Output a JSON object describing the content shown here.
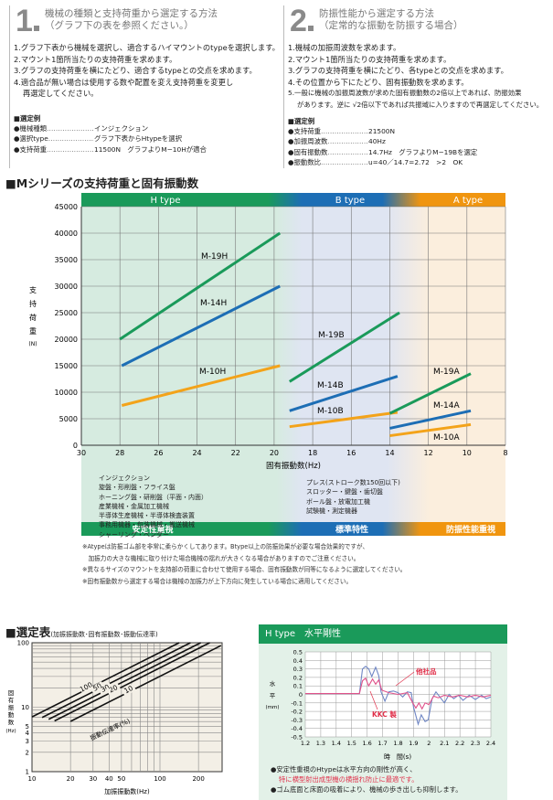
{
  "section1": {
    "number": "1",
    "title_line1": "機械の種類と支持荷重から選定する方法",
    "title_line2": "（グラフ下の表を参照ください。）",
    "steps": [
      "1.グラフ下表から機械を選択し、適合するハイマウントのtypeを選択します。",
      "2.マウント1箇所当たりの支持荷重を求めます。",
      "3.グラフの支持荷重を横にたどり、適合するtypeとの交点を求めます。",
      "4.適合品が無い場合は使用する数や配置を変え支持荷重を変更し",
      "再選定してください。"
    ],
    "example_title": "■選定例",
    "example": [
      {
        "k": "●機械種類",
        "v": "インジェクション"
      },
      {
        "k": "●選択type",
        "v": "グラフ下表からHtypeを選択"
      },
      {
        "k": "●支持荷重",
        "v": "11500N　グラフよりM−10Hが適合"
      }
    ]
  },
  "section2": {
    "number": "2",
    "title_line1": "防振性能から選定する方法",
    "title_line2": "（定常的な振動を防振する場合）",
    "steps": [
      "1.機械の加振周波数を求めます。",
      "2.マウント1箇所当たりの支持荷重を求めます。",
      "3.グラフの支持荷重を横にたどり、各typeとの交点を求めます。",
      "4.その位置から下にたどり、固有振動数を求めます。",
      "5.一般に機械の加振周波数が求めた固有振動数の2倍以上であれば、防振効果",
      "があります。逆に √2倍以下であれば共振域に入りますので再選定してください。"
    ],
    "example_title": "■選定例",
    "example": [
      {
        "k": "●支持荷重",
        "v": "21500N"
      },
      {
        "k": "●加振周波数",
        "v": "40Hz"
      },
      {
        "k": "●固有振動数",
        "v": "14.7Hz　グラフよりM−19Bを選定"
      },
      {
        "k": "●振動数比",
        "v": "u=40／14.7=2.72　>2　OK"
      }
    ]
  },
  "main_title": "■Mシリーズの支持荷重と固有振動数",
  "chart_data": [
    {
      "type": "line",
      "title": "Mシリーズの支持荷重と固有振動数",
      "xlabel": "固有振動数(Hz)",
      "ylabel": "支持荷重(N)",
      "ylabel_chars": [
        "支",
        "持",
        "荷",
        "重",
        "(N)"
      ],
      "xlim": [
        30,
        8
      ],
      "ylim": [
        0,
        45000
      ],
      "grid": true,
      "xticks": [
        30,
        28,
        26,
        24,
        22,
        20,
        18,
        16,
        14,
        12,
        10,
        8
      ],
      "yticks": [
        0,
        5000,
        10000,
        15000,
        20000,
        25000,
        30000,
        35000,
        40000,
        45000
      ],
      "bands": [
        {
          "name": "H type",
          "color": "#1a9a5a"
        },
        {
          "name": "B type",
          "color": "#1d6eb5"
        },
        {
          "name": "A type",
          "color": "#f0950f"
        }
      ],
      "series": [
        {
          "name": "M-19H",
          "color": "#1a9a5a",
          "points": [
            [
              28,
              20000
            ],
            [
              19.7,
              40000
            ]
          ]
        },
        {
          "name": "M-14H",
          "color": "#1d6eb5",
          "points": [
            [
              27.9,
              15000
            ],
            [
              19.7,
              30000
            ]
          ]
        },
        {
          "name": "M-10H",
          "color": "#f3a31a",
          "points": [
            [
              27.9,
              7500
            ],
            [
              19.7,
              15000
            ]
          ]
        },
        {
          "name": "M-19B",
          "color": "#1a9a5a",
          "points": [
            [
              19.2,
              12000
            ],
            [
              13.5,
              25000
            ]
          ]
        },
        {
          "name": "M-14B",
          "color": "#1d6eb5",
          "points": [
            [
              19.2,
              6500
            ],
            [
              13.6,
              13000
            ]
          ]
        },
        {
          "name": "M-10B",
          "color": "#f3a31a",
          "points": [
            [
              19.2,
              3500
            ],
            [
              13.6,
              6200
            ]
          ]
        },
        {
          "name": "M-19A",
          "color": "#1a9a5a",
          "points": [
            [
              14,
              6000
            ],
            [
              9.8,
              13500
            ]
          ]
        },
        {
          "name": "M-14A",
          "color": "#1d6eb5",
          "points": [
            [
              14,
              3200
            ],
            [
              9.8,
              6500
            ]
          ]
        },
        {
          "name": "M-10A",
          "color": "#f3a31a",
          "points": [
            [
              14,
              1800
            ],
            [
              9.8,
              3900
            ]
          ]
        }
      ]
    },
    {
      "type": "line",
      "title": "選定表",
      "subtitle": "(加振振動数･固有振動数･振動伝達率)",
      "xlabel": "加振振動数(Hz)",
      "ylabel_chars": [
        "固",
        "有",
        "振",
        "動",
        "数",
        "(Hz)"
      ],
      "xscale": "log",
      "yscale": "log",
      "xlim": [
        10,
        300
      ],
      "ylim": [
        1,
        100
      ],
      "xticks": [
        10,
        20,
        30,
        40,
        50,
        100,
        200
      ],
      "yticks": [
        1,
        2,
        3,
        4,
        5,
        10,
        100
      ],
      "curve_label": "振動伝達率(%)",
      "series": [
        {
          "name": "100",
          "start_hz": 10
        },
        {
          "name": "50",
          "start_hz": 12
        },
        {
          "name": "30",
          "start_hz": 13.5
        },
        {
          "name": "20",
          "start_hz": 15
        },
        {
          "name": "10",
          "start_hz": 20
        }
      ]
    },
    {
      "type": "line",
      "title": "H type　水平剛性",
      "xlabel": "時　間(s)",
      "ylabel_chars": [
        "水",
        "平",
        "(mm)"
      ],
      "xlim": [
        1.2,
        2.4
      ],
      "ylim": [
        -0.5,
        0.5
      ],
      "xticks": [
        1.2,
        1.3,
        1.4,
        1.5,
        1.6,
        1.7,
        1.8,
        1.9,
        2,
        2.1,
        2.2,
        2.3,
        2.4
      ],
      "yticks": [
        0.5,
        0.4,
        0.3,
        0.2,
        0.1,
        0,
        -0.1,
        -0.2,
        -0.3,
        -0.4,
        -0.5
      ],
      "series": [
        {
          "name": "他社品",
          "color": "#6f86c4",
          "points": [
            [
              1.2,
              0.01
            ],
            [
              1.55,
              0.01
            ],
            [
              1.57,
              0.3
            ],
            [
              1.59,
              0.33
            ],
            [
              1.61,
              0.3
            ],
            [
              1.63,
              0.21
            ],
            [
              1.655,
              0.32
            ],
            [
              1.675,
              0.22
            ],
            [
              1.69,
              0.03
            ],
            [
              1.715,
              -0.08
            ],
            [
              1.74,
              0.03
            ],
            [
              1.77,
              0.04
            ],
            [
              1.8,
              0.02
            ],
            [
              1.83,
              -0.03
            ],
            [
              1.86,
              0.03
            ],
            [
              1.885,
              0.02
            ],
            [
              1.9,
              -0.15
            ],
            [
              1.93,
              -0.35
            ],
            [
              1.95,
              -0.24
            ],
            [
              1.975,
              -0.32
            ],
            [
              1.995,
              -0.3
            ],
            [
              2.02,
              -0.05
            ],
            [
              2.045,
              0.03
            ],
            [
              2.07,
              -0.03
            ],
            [
              2.1,
              -0.1
            ],
            [
              2.13,
              0
            ],
            [
              2.16,
              -0.05
            ],
            [
              2.19,
              -0.01
            ],
            [
              2.22,
              -0.07
            ],
            [
              2.26,
              -0.01
            ],
            [
              2.3,
              -0.06
            ],
            [
              2.34,
              -0.01
            ],
            [
              2.37,
              -0.05
            ],
            [
              2.4,
              -0.03
            ]
          ]
        },
        {
          "name": "KKC 製",
          "color": "#e0528a",
          "points": [
            [
              1.2,
              0.01
            ],
            [
              1.55,
              0.01
            ],
            [
              1.57,
              0.16
            ],
            [
              1.59,
              0.19
            ],
            [
              1.61,
              0.1
            ],
            [
              1.635,
              0.18
            ],
            [
              1.655,
              0.12
            ],
            [
              1.675,
              0.17
            ],
            [
              1.695,
              0.05
            ],
            [
              1.74,
              0.02
            ],
            [
              1.8,
              0.0
            ],
            [
              1.86,
              0.02
            ],
            [
              1.895,
              -0.1
            ],
            [
              1.915,
              -0.16
            ],
            [
              1.935,
              -0.1
            ],
            [
              1.955,
              -0.17
            ],
            [
              1.975,
              -0.1
            ],
            [
              2.0,
              -0.12
            ],
            [
              2.03,
              -0.02
            ],
            [
              2.06,
              -0.04
            ],
            [
              2.1,
              -0.01
            ],
            [
              2.15,
              -0.03
            ],
            [
              2.2,
              -0.01
            ],
            [
              2.25,
              -0.03
            ],
            [
              2.3,
              -0.01
            ],
            [
              2.35,
              -0.03
            ],
            [
              2.4,
              -0.01
            ]
          ]
        }
      ]
    }
  ],
  "machines_h": [
    "インジェクション",
    "旋盤・形削盤・フライス盤",
    "ホーニング盤・研削盤（平面・内面）",
    "産業機械・金属加工機械",
    "半導体生産機械・半導体検査装置",
    "事務用機器・包装機械・搬送機械",
    "シャーリング・ベンダー"
  ],
  "machines_b": [
    "プレス(ストローク数150回以下)",
    "スロッター・鍵盤・歯切盤",
    "ボール盤・放電加工機",
    "試験機・測定機器"
  ],
  "characteristics": [
    "安定性重視",
    "標準特性",
    "防振性能重視"
  ],
  "notes": [
    "※Atypeは防振ゴム部を非常に柔らかくしてあります。Btype以上の防振効果が必要な場合効果的ですが、",
    "　加振力の大きな機械に取り付けた場合機械の揺れが大きくなる場合がありますのでご注意ください。",
    "※異なるサイズのマウントを支持部の荷重に合わせて使用する場合、固有振動数が同等になるように選定してください。",
    "※固有振動数から選定する場合は機械の加振力が上下方向に発生している場合に適用してください。"
  ],
  "selection_title": "■選定表",
  "selection_subtitle": "(加振振動数･固有振動数･振動伝達率)",
  "htype_panel": {
    "title": "H type　水平剛性",
    "bullet1": "●安定性重視のHtypeは水平方向の剛性が高く、",
    "bullet1_red": "特に横型射出成型機の横揺れ防止に最適です。",
    "bullet2": "●ゴム底面と床面の吸着により、機械の歩き出しも抑制します。"
  }
}
